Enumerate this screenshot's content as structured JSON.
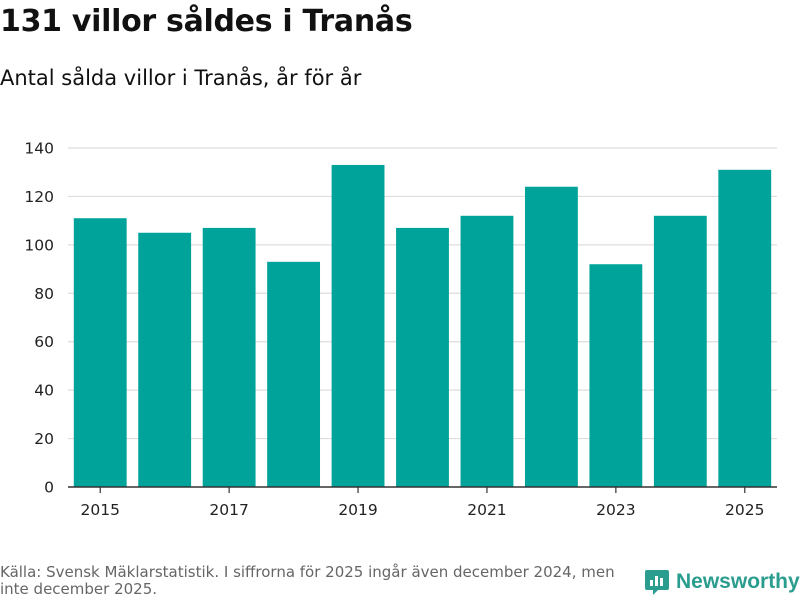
{
  "header": {
    "title": "131 villor såldes i Tranås",
    "subtitle": "Antal sålda villor i Tranås, år för år"
  },
  "footer": {
    "source": "Källa: Svensk Mäklarstatistik. I siffrorna för 2025 ingår även december 2024, men inte december 2025.",
    "brand": "Newsworthy"
  },
  "colors": {
    "bar": "#00a39a",
    "grid": "#dddddd",
    "axis": "#333333",
    "brand": "#2a9d8f"
  },
  "chart_data": {
    "type": "bar",
    "title": "Antal sålda villor i Tranås, år för år",
    "xlabel": "",
    "ylabel": "",
    "categories": [
      "2015",
      "2016",
      "2017",
      "2018",
      "2019",
      "2020",
      "2021",
      "2022",
      "2023",
      "2024",
      "2025"
    ],
    "values": [
      111,
      105,
      107,
      93,
      133,
      107,
      112,
      124,
      92,
      112,
      131
    ],
    "x_tick_labels": [
      "2015",
      "2017",
      "2019",
      "2021",
      "2023",
      "2025"
    ],
    "y_ticks": [
      0,
      20,
      40,
      60,
      80,
      100,
      120,
      140
    ],
    "ylim": [
      0,
      140
    ],
    "grid": true
  }
}
